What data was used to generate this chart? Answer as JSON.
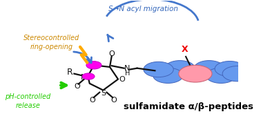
{
  "title": "sulfamidate α/β-peptides",
  "label_sn": "S→N acyl migration",
  "label_stereo": "Stereocontrolled\nring-opening",
  "label_ph": "pH-controlled\nrelease",
  "bg_color": "#ffffff",
  "blue_arrow_color": "#4477cc",
  "green_arrow_color": "#22cc00",
  "orange_lightning_color": "#ffaa00",
  "magenta_ball_color": "#ff00ee",
  "pink_ball_color": "#ff99aa",
  "blue_ball_color": "#6699ee",
  "red_x_color": "#ee0000",
  "bond_color": "#111111",
  "text_color_sn": "#3366bb",
  "text_color_stereo": "#cc8800",
  "text_color_ph": "#22cc00",
  "text_color_title": "#000000",
  "figw": 3.78,
  "figh": 1.78,
  "dpi": 100
}
